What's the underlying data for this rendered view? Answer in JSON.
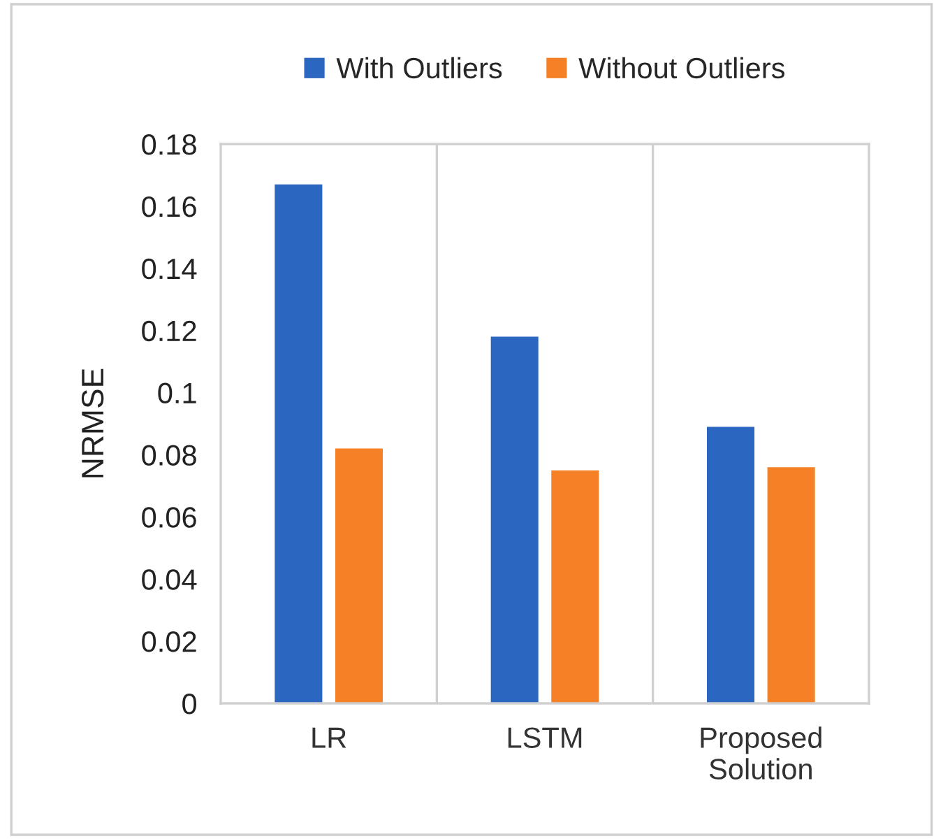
{
  "chart_data": {
    "type": "bar",
    "ylabel": "NRMSE",
    "categories": [
      "LR",
      "LSTM",
      "Proposed\nSolution"
    ],
    "series": [
      {
        "name": "With Outliers",
        "color": "#2b67c0",
        "values": [
          0.167,
          0.118,
          0.089
        ]
      },
      {
        "name": "Without Outliers",
        "color": "#f58025",
        "values": [
          0.082,
          0.075,
          0.076
        ]
      }
    ],
    "ylim": [
      0,
      0.18
    ],
    "yticks": [
      0,
      0.02,
      0.04,
      0.06,
      0.08,
      {
        "value": 0.1,
        "label": "0.1"
      },
      0.12,
      0.14,
      0.16,
      0.18
    ],
    "grid": "x",
    "legend": "top"
  }
}
